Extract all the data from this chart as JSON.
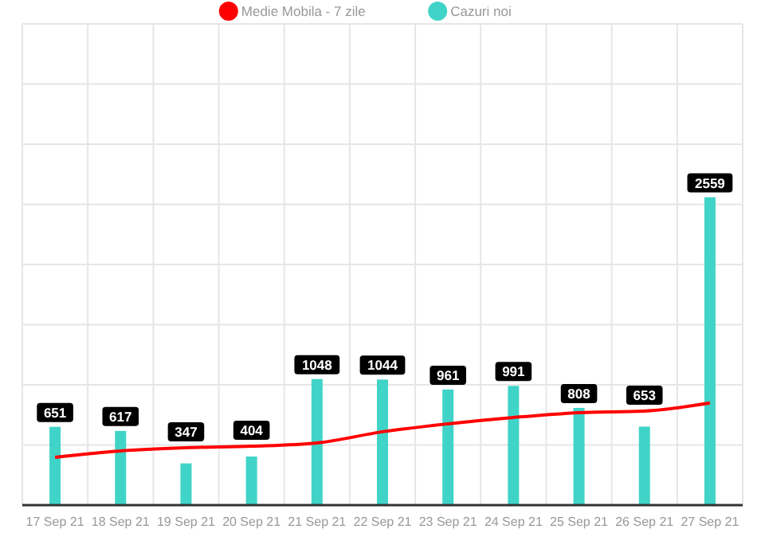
{
  "chart_data": {
    "type": "bar",
    "categories": [
      "17 Sep 21",
      "18 Sep 21",
      "19 Sep 21",
      "20 Sep 21",
      "21 Sep 21",
      "22 Sep 21",
      "23 Sep 21",
      "24 Sep 21",
      "25 Sep 21",
      "26 Sep 21",
      "27 Sep 21"
    ],
    "series": [
      {
        "name": "Medie Mobila - 7 zile",
        "type": "line",
        "color": "#ff0000",
        "values": [
          398,
          451,
          477,
          490,
          517,
          610,
          676,
          729,
          769,
          782,
          849
        ]
      },
      {
        "name": "Cazuri noi",
        "color": "#40d4c8",
        "values": [
          651,
          617,
          347,
          404,
          1048,
          1044,
          961,
          991,
          808,
          653,
          2559
        ],
        "value_labels": [
          "651",
          "617",
          "347",
          "404",
          "1048",
          "1044",
          "961",
          "991",
          "808",
          "653",
          "2559"
        ]
      }
    ],
    "ylim": [
      0,
      4000
    ],
    "yticks": [
      {
        "value": 0,
        "label": null
      },
      {
        "value": 500,
        "label": null
      },
      {
        "value": 1000,
        "label": null
      },
      {
        "value": 1500,
        "label": null
      },
      {
        "value": 2000,
        "label": null
      },
      {
        "value": 2500,
        "label": null
      },
      {
        "value": 3000,
        "label": null
      },
      {
        "value": 3500,
        "label": null
      },
      {
        "value": 4000,
        "label": null
      }
    ],
    "tick_labels": "x",
    "grid": true,
    "legend": "top",
    "marker": "none"
  }
}
